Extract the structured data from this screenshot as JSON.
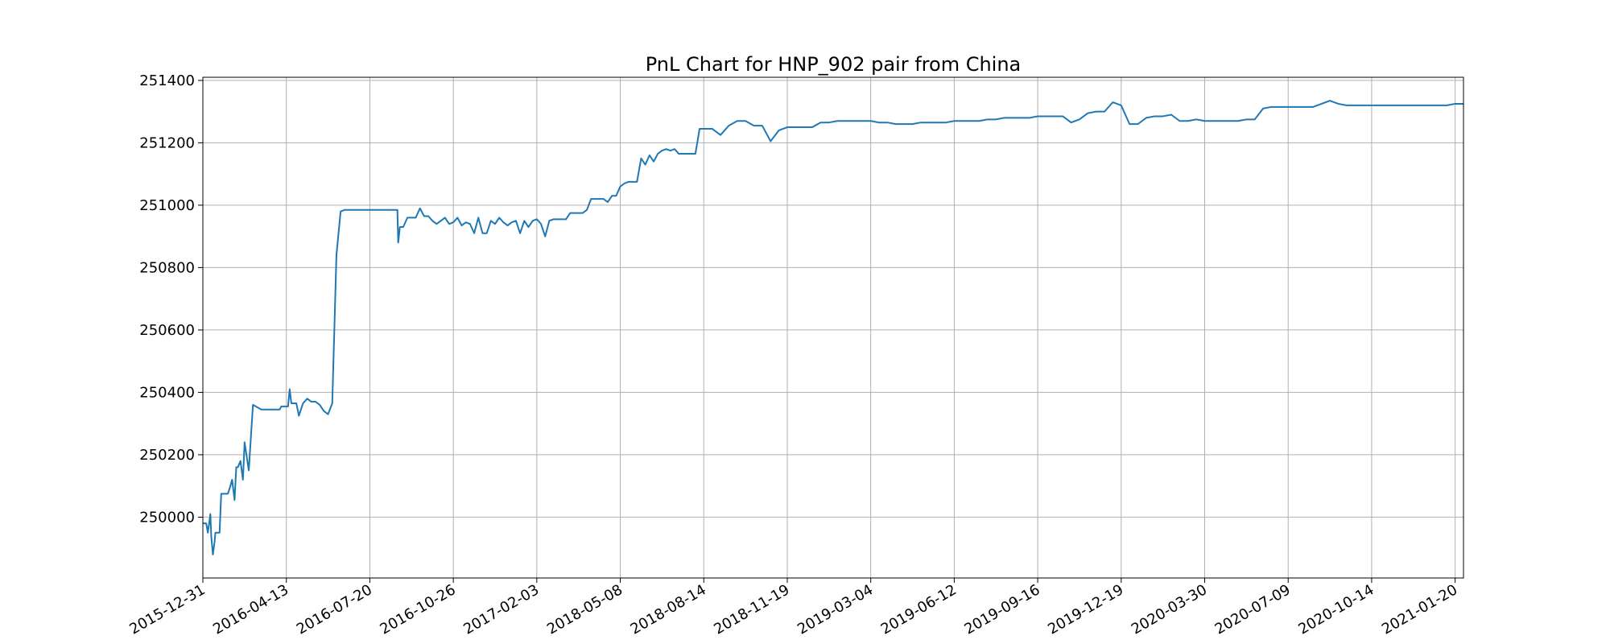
{
  "chart_data": {
    "type": "line",
    "title": "PnL Chart for HNP_902 pair from China",
    "xlabel": "",
    "ylabel": "",
    "x_tick_labels": [
      "2015-12-31",
      "2016-04-13",
      "2016-07-20",
      "2016-10-26",
      "2017-02-03",
      "2018-05-08",
      "2018-08-14",
      "2018-11-19",
      "2019-03-04",
      "2019-06-12",
      "2019-09-16",
      "2019-12-19",
      "2020-03-30",
      "2020-07-09",
      "2020-10-14",
      "2021-01-20"
    ],
    "y_ticks": [
      250000,
      250200,
      250400,
      250600,
      250800,
      251000,
      251200,
      251400
    ],
    "ylim": [
      249805,
      251410
    ],
    "grid": true,
    "line_color": "#1f77b4",
    "series": [
      {
        "x": [
          0,
          0.04,
          0.06,
          0.08,
          0.09,
          0.1,
          0.12,
          0.14,
          0.15,
          0.18,
          0.2,
          0.22,
          0.25,
          0.28,
          0.3,
          0.33,
          0.35,
          0.38,
          0.4,
          0.42,
          0.45,
          0.48,
          0.5,
          0.55,
          0.6,
          0.7,
          0.8,
          0.9,
          0.92,
          0.94,
          0.96,
          0.98,
          1.0,
          1.02,
          1.04,
          1.06,
          1.08,
          1.1,
          1.12,
          1.15,
          1.2,
          1.25,
          1.3,
          1.35,
          1.4,
          1.45,
          1.5,
          1.55,
          1.6,
          1.65,
          1.7,
          1.72,
          1.74,
          1.76,
          1.77,
          1.775,
          1.78,
          1.79,
          1.8,
          1.85,
          1.9,
          2.0,
          2.1,
          2.2,
          2.3,
          2.32,
          2.33,
          2.34,
          2.36,
          2.4,
          2.45,
          2.5,
          2.55,
          2.6,
          2.65,
          2.7,
          2.75,
          2.8,
          2.85,
          2.9,
          2.95,
          3.0,
          3.05,
          3.1,
          3.15,
          3.2,
          3.25,
          3.3,
          3.35,
          3.4,
          3.45,
          3.5,
          3.55,
          3.6,
          3.65,
          3.7,
          3.75,
          3.8,
          3.85,
          3.9,
          3.95,
          4.0,
          4.05,
          4.1,
          4.15,
          4.2,
          4.25,
          4.3,
          4.35,
          4.4,
          4.45,
          4.5,
          4.55,
          4.6,
          4.65,
          4.7,
          4.75,
          4.8,
          4.85,
          4.9,
          4.95,
          5.0,
          5.05,
          5.1,
          5.15,
          5.2,
          5.25,
          5.3,
          5.35,
          5.4,
          5.45,
          5.5,
          5.55,
          5.6,
          5.65,
          5.7,
          5.75,
          5.8,
          5.85,
          5.9,
          5.95,
          6.0,
          6.1,
          6.2,
          6.3,
          6.4,
          6.5,
          6.6,
          6.7,
          6.8,
          6.9,
          7.0,
          7.05,
          7.1,
          7.15,
          7.2,
          7.3,
          7.4,
          7.5,
          7.6,
          7.7,
          7.8,
          7.9,
          8.0,
          8.1,
          8.2,
          8.3,
          8.4,
          8.5,
          8.6,
          8.7,
          8.8,
          8.9,
          9.0,
          9.1,
          9.2,
          9.3,
          9.4,
          9.5,
          9.6,
          9.7,
          9.8,
          9.9,
          10.0,
          10.1,
          10.2,
          10.3,
          10.4,
          10.5,
          10.6,
          10.7,
          10.8,
          10.9,
          11.0,
          11.1,
          11.2,
          11.3,
          11.4,
          11.5,
          11.6,
          11.7,
          11.8,
          11.9,
          12.0,
          12.1,
          12.2,
          12.3,
          12.4,
          12.5,
          12.6,
          12.7,
          12.8,
          12.9,
          13.0,
          13.1,
          13.2,
          13.3,
          13.4,
          13.5,
          13.6,
          13.7,
          13.8,
          13.9,
          14.0,
          14.1,
          14.2,
          14.3,
          14.4,
          14.5,
          14.6,
          14.7,
          14.8,
          14.9,
          15.0,
          15.1
        ],
        "y": [
          249980,
          249980,
          249950,
          249990,
          250010,
          249940,
          249880,
          249920,
          249950,
          249950,
          249950,
          250075,
          250075,
          250075,
          250075,
          250100,
          250120,
          250055,
          250160,
          250160,
          250180,
          250120,
          250240,
          250150,
          250360,
          250345,
          250345,
          250345,
          250345,
          250355,
          250355,
          250355,
          250355,
          250355,
          250410,
          250365,
          250365,
          250365,
          250365,
          250325,
          250365,
          250380,
          250370,
          250370,
          250360,
          250340,
          250330,
          250365,
          250840,
          250980,
          250985,
          250985,
          250985,
          250985,
          250985,
          250985,
          250985,
          250985,
          250985,
          250985,
          250985,
          250985,
          250985,
          250985,
          250985,
          250985,
          250985,
          250880,
          250930,
          250930,
          250960,
          250960,
          250960,
          250990,
          250965,
          250965,
          250950,
          250940,
          250950,
          250960,
          250940,
          250945,
          250960,
          250935,
          250945,
          250940,
          250910,
          250960,
          250910,
          250910,
          250950,
          250940,
          250960,
          250945,
          250935,
          250945,
          250950,
          250910,
          250950,
          250930,
          250950,
          250955,
          250940,
          250900,
          250950,
          250955,
          250955,
          250955,
          250955,
          250975,
          250975,
          250975,
          250975,
          250985,
          251020,
          251020,
          251020,
          251020,
          251010,
          251030,
          251030,
          251060,
          251070,
          251075,
          251075,
          251075,
          251150,
          251130,
          251160,
          251140,
          251165,
          251175,
          251180,
          251175,
          251180,
          251165,
          251165,
          251165,
          251165,
          251165,
          251245,
          251245,
          251245,
          251225,
          251255,
          251270,
          251270,
          251255,
          251255,
          251205,
          251240,
          251250,
          251250,
          251250,
          251250,
          251250,
          251250,
          251265,
          251265,
          251270,
          251270,
          251270,
          251270,
          251270,
          251265,
          251265,
          251260,
          251260,
          251260,
          251265,
          251265,
          251265,
          251265,
          251270,
          251270,
          251270,
          251270,
          251275,
          251275,
          251280,
          251280,
          251280,
          251280,
          251285,
          251285,
          251285,
          251285,
          251265,
          251275,
          251295,
          251300,
          251300,
          251330,
          251320,
          251260,
          251260,
          251280,
          251285,
          251285,
          251290,
          251270,
          251270,
          251275,
          251270,
          251270,
          251270,
          251270,
          251270,
          251275,
          251275,
          251310,
          251315,
          251315,
          251315,
          251315,
          251315,
          251315,
          251325,
          251335,
          251325,
          251320,
          251320,
          251320,
          251320,
          251320,
          251320,
          251320,
          251320,
          251320,
          251320,
          251320,
          251320,
          251320,
          251325,
          251325
        ]
      }
    ]
  }
}
